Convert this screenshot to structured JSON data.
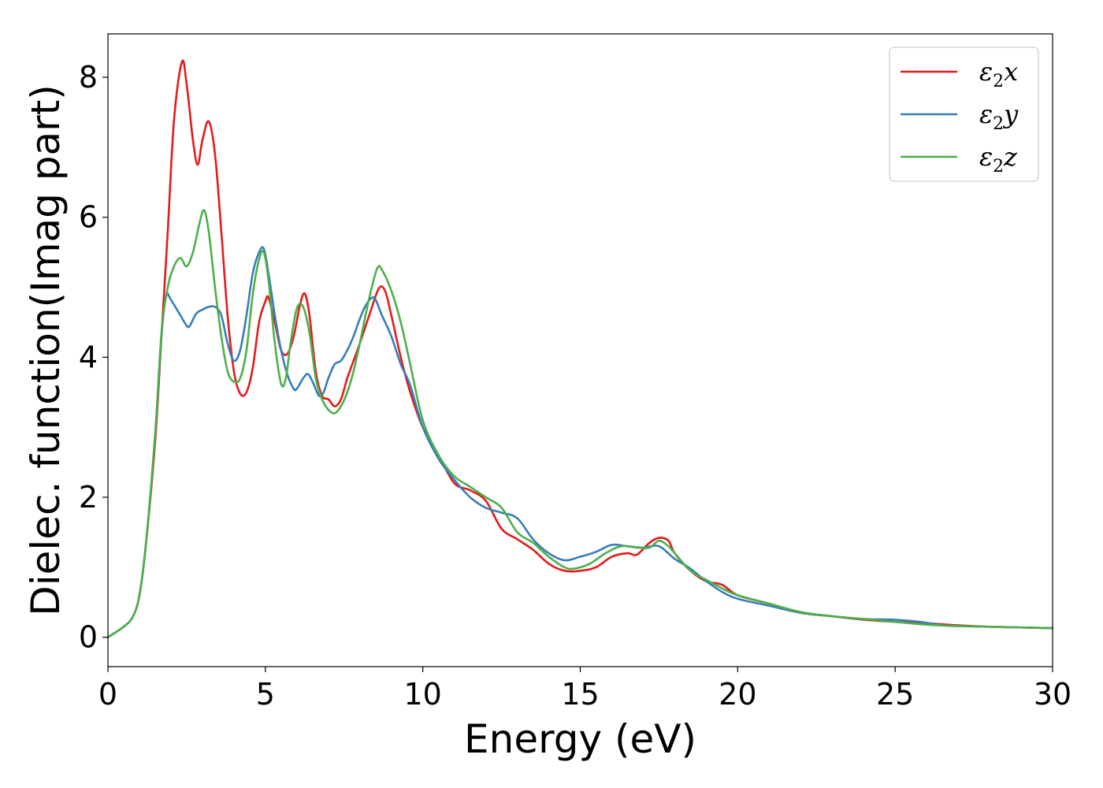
{
  "chart_data": {
    "type": "line",
    "xlabel": "Energy (eV)",
    "ylabel": "Dielec. function(Imag part)",
    "xlim": [
      0,
      30
    ],
    "ylim": [
      -0.42,
      8.62
    ],
    "xticks": [
      0,
      5,
      10,
      15,
      20,
      25,
      30
    ],
    "yticks": [
      0,
      2,
      4,
      6,
      8
    ],
    "grid": false,
    "legend_position": "top-right",
    "series": [
      {
        "name": "ε2x",
        "label_base": "ε",
        "label_sub": "2",
        "label_axis": "x",
        "color": "#e41a1c",
        "x": [
          0,
          0.5,
          0.8,
          1.0,
          1.2,
          1.5,
          1.7,
          1.9,
          2.1,
          2.35,
          2.5,
          2.7,
          2.85,
          3.0,
          3.2,
          3.4,
          3.6,
          3.8,
          4.0,
          4.2,
          4.4,
          4.6,
          4.8,
          5.0,
          5.1,
          5.3,
          5.5,
          5.7,
          5.9,
          6.1,
          6.25,
          6.4,
          6.6,
          6.8,
          7.0,
          7.2,
          7.4,
          7.6,
          7.8,
          8.0,
          8.3,
          8.6,
          8.8,
          9.0,
          9.3,
          9.6,
          10.0,
          10.5,
          11.0,
          11.5,
          12.0,
          12.5,
          13.0,
          13.5,
          14.0,
          14.5,
          15.0,
          15.5,
          16.0,
          16.5,
          16.8,
          17.2,
          17.5,
          17.8,
          18.0,
          18.5,
          19.0,
          19.5,
          20.0,
          21.0,
          22.0,
          23.0,
          24.0,
          25.0,
          26.0,
          27.0,
          28.0,
          29.0,
          30.0
        ],
        "y": [
          0.0,
          0.15,
          0.3,
          0.6,
          1.3,
          2.8,
          4.3,
          5.8,
          7.4,
          8.22,
          7.9,
          7.1,
          6.75,
          7.1,
          7.37,
          6.9,
          5.8,
          4.6,
          3.8,
          3.48,
          3.5,
          3.85,
          4.5,
          4.8,
          4.85,
          4.5,
          4.1,
          4.05,
          4.3,
          4.75,
          4.91,
          4.6,
          3.8,
          3.45,
          3.4,
          3.3,
          3.4,
          3.7,
          3.95,
          4.2,
          4.6,
          4.98,
          4.95,
          4.6,
          4.0,
          3.5,
          3.0,
          2.6,
          2.2,
          2.1,
          1.95,
          1.55,
          1.4,
          1.25,
          1.05,
          0.95,
          0.95,
          1.0,
          1.15,
          1.2,
          1.18,
          1.35,
          1.42,
          1.38,
          1.2,
          0.95,
          0.8,
          0.75,
          0.6,
          0.48,
          0.35,
          0.3,
          0.25,
          0.22,
          0.2,
          0.17,
          0.15,
          0.14,
          0.13
        ]
      },
      {
        "name": "ε2y",
        "label_base": "ε",
        "label_sub": "2",
        "label_axis": "y",
        "color": "#377eb8",
        "x": [
          0,
          0.5,
          0.8,
          1.0,
          1.2,
          1.5,
          1.7,
          1.85,
          2.0,
          2.3,
          2.5,
          2.6,
          2.8,
          3.0,
          3.2,
          3.4,
          3.6,
          3.8,
          4.0,
          4.2,
          4.4,
          4.6,
          4.8,
          4.95,
          5.1,
          5.3,
          5.5,
          5.7,
          5.9,
          6.0,
          6.2,
          6.35,
          6.5,
          6.7,
          6.85,
          7.0,
          7.2,
          7.4,
          7.6,
          7.8,
          8.0,
          8.2,
          8.45,
          8.7,
          9.0,
          9.3,
          9.6,
          10.0,
          10.5,
          11.0,
          11.5,
          12.0,
          12.5,
          13.0,
          13.5,
          14.0,
          14.5,
          15.0,
          15.5,
          16.0,
          16.5,
          17.0,
          17.5,
          18.0,
          18.5,
          19.0,
          19.5,
          20.0,
          21.0,
          22.0,
          23.0,
          24.0,
          25.0,
          25.8,
          26.5,
          27.0,
          28.0,
          29.0,
          30.0
        ],
        "y": [
          0.0,
          0.15,
          0.3,
          0.6,
          1.3,
          2.9,
          4.3,
          4.88,
          4.82,
          4.6,
          4.45,
          4.45,
          4.62,
          4.68,
          4.72,
          4.72,
          4.6,
          4.2,
          3.95,
          4.1,
          4.6,
          5.2,
          5.5,
          5.55,
          5.2,
          4.6,
          4.1,
          3.75,
          3.55,
          3.55,
          3.7,
          3.76,
          3.65,
          3.45,
          3.5,
          3.7,
          3.9,
          3.95,
          4.1,
          4.3,
          4.55,
          4.75,
          4.85,
          4.6,
          4.3,
          3.9,
          3.6,
          3.0,
          2.55,
          2.25,
          2.0,
          1.85,
          1.78,
          1.7,
          1.4,
          1.2,
          1.1,
          1.15,
          1.22,
          1.32,
          1.3,
          1.28,
          1.3,
          1.12,
          0.98,
          0.8,
          0.65,
          0.55,
          0.45,
          0.35,
          0.3,
          0.26,
          0.25,
          0.22,
          0.17,
          0.16,
          0.15,
          0.14,
          0.13
        ]
      },
      {
        "name": "ε2z",
        "label_base": "ε",
        "label_sub": "2",
        "label_axis": "z",
        "color": "#4daf4a",
        "x": [
          0,
          0.5,
          0.8,
          1.0,
          1.2,
          1.5,
          1.7,
          1.9,
          2.1,
          2.3,
          2.5,
          2.7,
          2.9,
          3.05,
          3.2,
          3.4,
          3.6,
          3.8,
          4.0,
          4.2,
          4.4,
          4.6,
          4.8,
          4.95,
          5.1,
          5.3,
          5.5,
          5.65,
          5.8,
          6.0,
          6.2,
          6.4,
          6.6,
          6.8,
          7.0,
          7.2,
          7.4,
          7.6,
          7.8,
          8.0,
          8.3,
          8.55,
          8.7,
          9.0,
          9.3,
          9.6,
          10.0,
          10.5,
          11.0,
          11.5,
          12.0,
          12.5,
          13.0,
          13.5,
          14.0,
          14.5,
          14.8,
          15.3,
          15.8,
          16.3,
          16.8,
          17.2,
          17.5,
          17.8,
          18.0,
          18.5,
          19.0,
          19.5,
          20.0,
          21.0,
          22.0,
          23.0,
          24.0,
          25.0,
          26.0,
          27.0,
          28.0,
          29.0,
          30.0
        ],
        "y": [
          0.0,
          0.15,
          0.3,
          0.6,
          1.3,
          2.9,
          4.35,
          5.0,
          5.3,
          5.42,
          5.3,
          5.5,
          5.9,
          6.1,
          5.8,
          5.0,
          4.3,
          3.8,
          3.65,
          3.7,
          4.1,
          4.9,
          5.4,
          5.5,
          5.1,
          4.2,
          3.62,
          3.7,
          4.2,
          4.7,
          4.72,
          4.35,
          3.7,
          3.4,
          3.25,
          3.2,
          3.3,
          3.5,
          3.8,
          4.2,
          4.85,
          5.27,
          5.25,
          4.95,
          4.5,
          3.9,
          3.1,
          2.6,
          2.3,
          2.15,
          2.0,
          1.85,
          1.5,
          1.35,
          1.15,
          1.0,
          0.98,
          1.05,
          1.2,
          1.3,
          1.28,
          1.28,
          1.38,
          1.3,
          1.2,
          0.95,
          0.82,
          0.7,
          0.6,
          0.48,
          0.36,
          0.3,
          0.26,
          0.22,
          0.18,
          0.16,
          0.15,
          0.14,
          0.13
        ]
      }
    ]
  }
}
